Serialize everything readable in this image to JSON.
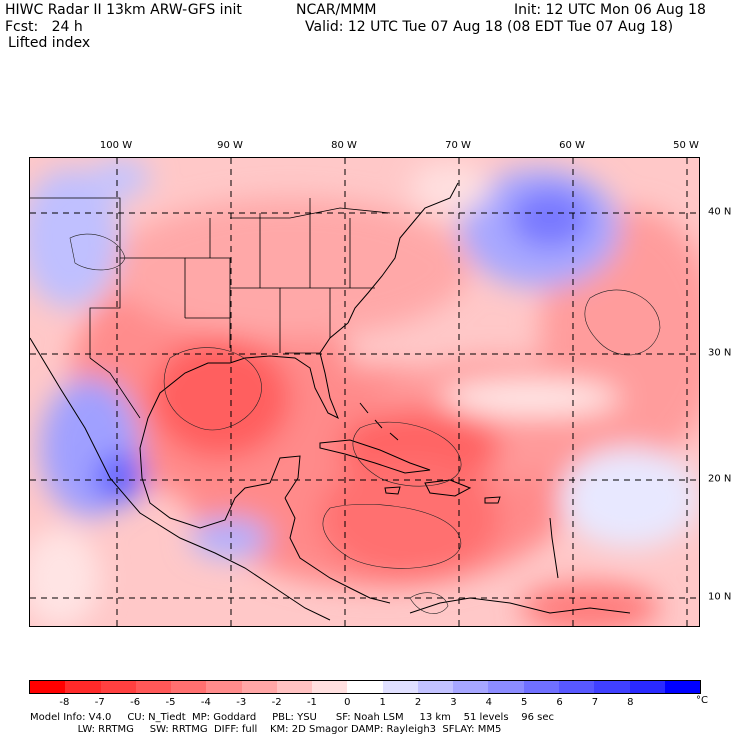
{
  "header": {
    "line1_left": "HIWC Radar II 13km ARW-GFS init",
    "line1_center": "NCAR/MMM",
    "line1_right": "Init: 12 UTC Mon 06 Aug 18",
    "line2_left": "Fcst:   24 h",
    "line2_right": "Valid: 12 UTC Tue 07 Aug 18 (08 EDT Tue 07 Aug 18)",
    "field_name": "Lifted index"
  },
  "map": {
    "lon_labels": [
      "100 W",
      "90 W",
      "80 W",
      "70 W",
      "60 W",
      "50 W"
    ],
    "lat_labels": [
      "40 N",
      "30 N",
      "20 N",
      "10 N"
    ]
  },
  "colorbar": {
    "colors": [
      "#ff0000",
      "#ff2a2a",
      "#ff4040",
      "#ff5858",
      "#ff7070",
      "#ff8c8c",
      "#ffa6a6",
      "#ffc2c2",
      "#ffe0e0",
      "#ffffff",
      "#e0e0ff",
      "#c2c2ff",
      "#a6a6ff",
      "#8c8cff",
      "#7070ff",
      "#5858ff",
      "#4040ff",
      "#2a2aff",
      "#0000ff"
    ],
    "tick_labels": [
      "-8",
      "-7",
      "-6",
      "-5",
      "-4",
      "-3",
      "-2",
      "-1",
      "0",
      "1",
      "2",
      "3",
      "4",
      "5",
      "6",
      "7",
      "8"
    ],
    "unit": "°C"
  },
  "footer": {
    "line1": "Model Info: V4.0     CU: N_Tiedt  MP: Goddard     PBL: YSU      SF: Noah LSM     13 km    51 levels    96 sec",
    "line2": "               LW: RRTMG     SW: RRTMG  DIFF: full    KM: 2D Smagor DAMP: Rayleigh3  SFLAY: MM5"
  }
}
